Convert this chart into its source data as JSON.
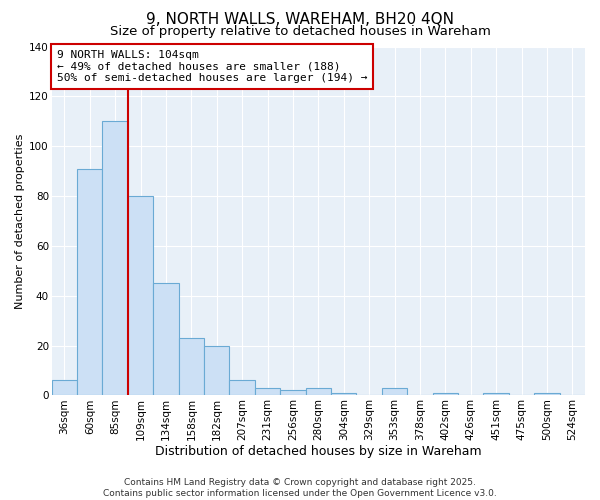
{
  "title": "9, NORTH WALLS, WAREHAM, BH20 4QN",
  "subtitle": "Size of property relative to detached houses in Wareham",
  "xlabel": "Distribution of detached houses by size in Wareham",
  "ylabel": "Number of detached properties",
  "bar_color": "#cce0f5",
  "bar_edge_color": "#6aaad4",
  "background_color": "#ffffff",
  "plot_bg_color": "#e8f0f8",
  "grid_color": "#ffffff",
  "categories": [
    "36sqm",
    "60sqm",
    "85sqm",
    "109sqm",
    "134sqm",
    "158sqm",
    "182sqm",
    "207sqm",
    "231sqm",
    "256sqm",
    "280sqm",
    "304sqm",
    "329sqm",
    "353sqm",
    "378sqm",
    "402sqm",
    "426sqm",
    "451sqm",
    "475sqm",
    "500sqm",
    "524sqm"
  ],
  "values": [
    6,
    91,
    110,
    80,
    45,
    23,
    20,
    6,
    3,
    2,
    3,
    1,
    0,
    3,
    0,
    1,
    0,
    1,
    0,
    1,
    0
  ],
  "ylim": [
    0,
    140
  ],
  "yticks": [
    0,
    20,
    40,
    60,
    80,
    100,
    120,
    140
  ],
  "vline_color": "#cc0000",
  "vline_index": 2.5,
  "annotation_title": "9 NORTH WALLS: 104sqm",
  "annotation_line2": "← 49% of detached houses are smaller (188)",
  "annotation_line3": "50% of semi-detached houses are larger (194) →",
  "annotation_box_edgecolor": "#cc0000",
  "footer_line1": "Contains HM Land Registry data © Crown copyright and database right 2025.",
  "footer_line2": "Contains public sector information licensed under the Open Government Licence v3.0.",
  "title_fontsize": 11,
  "subtitle_fontsize": 9.5,
  "xlabel_fontsize": 9,
  "ylabel_fontsize": 8,
  "tick_fontsize": 7.5,
  "annotation_fontsize": 8,
  "footer_fontsize": 6.5
}
